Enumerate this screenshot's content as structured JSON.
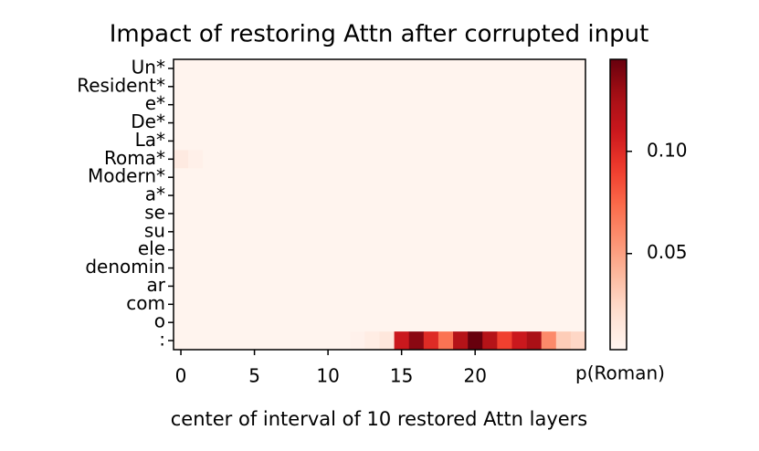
{
  "chart_data": {
    "type": "heatmap",
    "title": "Impact of restoring Attn after corrupted input",
    "xlabel": "center of interval of 10 restored Attn layers",
    "colorbar_label": "p(Roman)",
    "colormap": "Reds",
    "categories": [
      "Un*",
      "Resident*",
      "e*",
      "De*",
      "La*",
      "Roma*",
      "Modern*",
      "a*",
      "se",
      "su",
      "ele",
      "denomin",
      "ar",
      "com",
      "o",
      ":"
    ],
    "xlim": [
      -0.5,
      27.5
    ],
    "xticks": [
      0,
      5,
      10,
      15,
      20
    ],
    "zlim": [
      0.003,
      0.145
    ],
    "zticks": [
      0.05,
      {
        "value": 0.1,
        "label": "0.10"
      }
    ],
    "z": [
      [
        0.004,
        0.004,
        0.004,
        0.004,
        0.004,
        0.004,
        0.004,
        0.004,
        0.004,
        0.004,
        0.004,
        0.004,
        0.004,
        0.004,
        0.004,
        0.004,
        0.004,
        0.004,
        0.004,
        0.004,
        0.004,
        0.004,
        0.004,
        0.004,
        0.004,
        0.004,
        0.004,
        0.004
      ],
      [
        0.004,
        0.004,
        0.004,
        0.004,
        0.004,
        0.004,
        0.004,
        0.004,
        0.004,
        0.004,
        0.004,
        0.004,
        0.004,
        0.004,
        0.004,
        0.004,
        0.004,
        0.004,
        0.004,
        0.004,
        0.004,
        0.004,
        0.004,
        0.004,
        0.004,
        0.004,
        0.004,
        0.004
      ],
      [
        0.004,
        0.004,
        0.004,
        0.004,
        0.004,
        0.004,
        0.004,
        0.004,
        0.004,
        0.004,
        0.004,
        0.004,
        0.004,
        0.004,
        0.004,
        0.004,
        0.004,
        0.004,
        0.004,
        0.004,
        0.004,
        0.004,
        0.004,
        0.004,
        0.004,
        0.004,
        0.004,
        0.004
      ],
      [
        0.004,
        0.004,
        0.004,
        0.004,
        0.004,
        0.004,
        0.004,
        0.004,
        0.004,
        0.004,
        0.004,
        0.004,
        0.004,
        0.004,
        0.004,
        0.004,
        0.004,
        0.004,
        0.004,
        0.004,
        0.004,
        0.004,
        0.004,
        0.004,
        0.004,
        0.004,
        0.004,
        0.004
      ],
      [
        0.004,
        0.004,
        0.004,
        0.004,
        0.004,
        0.004,
        0.004,
        0.004,
        0.004,
        0.004,
        0.004,
        0.004,
        0.004,
        0.004,
        0.004,
        0.004,
        0.004,
        0.004,
        0.004,
        0.004,
        0.004,
        0.004,
        0.004,
        0.004,
        0.004,
        0.004,
        0.004,
        0.004
      ],
      [
        0.012,
        0.007,
        0.004,
        0.004,
        0.004,
        0.004,
        0.004,
        0.004,
        0.004,
        0.004,
        0.004,
        0.004,
        0.004,
        0.004,
        0.004,
        0.004,
        0.004,
        0.004,
        0.004,
        0.004,
        0.004,
        0.004,
        0.004,
        0.004,
        0.004,
        0.004,
        0.004,
        0.004
      ],
      [
        0.004,
        0.004,
        0.004,
        0.004,
        0.004,
        0.004,
        0.004,
        0.004,
        0.004,
        0.004,
        0.004,
        0.004,
        0.004,
        0.004,
        0.004,
        0.004,
        0.004,
        0.004,
        0.004,
        0.004,
        0.004,
        0.004,
        0.004,
        0.004,
        0.004,
        0.004,
        0.004,
        0.004
      ],
      [
        0.004,
        0.004,
        0.004,
        0.004,
        0.004,
        0.004,
        0.004,
        0.004,
        0.004,
        0.004,
        0.004,
        0.004,
        0.004,
        0.004,
        0.004,
        0.004,
        0.004,
        0.004,
        0.004,
        0.004,
        0.004,
        0.004,
        0.004,
        0.004,
        0.004,
        0.004,
        0.004,
        0.004
      ],
      [
        0.004,
        0.004,
        0.004,
        0.004,
        0.004,
        0.004,
        0.004,
        0.004,
        0.004,
        0.004,
        0.004,
        0.004,
        0.004,
        0.004,
        0.004,
        0.004,
        0.004,
        0.004,
        0.004,
        0.004,
        0.004,
        0.004,
        0.004,
        0.004,
        0.004,
        0.004,
        0.004,
        0.004
      ],
      [
        0.004,
        0.004,
        0.004,
        0.004,
        0.004,
        0.004,
        0.004,
        0.004,
        0.004,
        0.004,
        0.004,
        0.004,
        0.004,
        0.004,
        0.004,
        0.004,
        0.004,
        0.004,
        0.004,
        0.004,
        0.004,
        0.004,
        0.004,
        0.004,
        0.004,
        0.004,
        0.004,
        0.004
      ],
      [
        0.004,
        0.004,
        0.004,
        0.004,
        0.004,
        0.004,
        0.004,
        0.004,
        0.004,
        0.004,
        0.004,
        0.004,
        0.004,
        0.004,
        0.004,
        0.004,
        0.004,
        0.004,
        0.004,
        0.004,
        0.004,
        0.004,
        0.004,
        0.004,
        0.004,
        0.004,
        0.004,
        0.004
      ],
      [
        0.004,
        0.004,
        0.004,
        0.004,
        0.004,
        0.004,
        0.004,
        0.004,
        0.004,
        0.004,
        0.004,
        0.004,
        0.004,
        0.004,
        0.004,
        0.004,
        0.004,
        0.004,
        0.004,
        0.004,
        0.004,
        0.004,
        0.004,
        0.004,
        0.004,
        0.004,
        0.004,
        0.004
      ],
      [
        0.004,
        0.004,
        0.004,
        0.004,
        0.004,
        0.004,
        0.004,
        0.004,
        0.004,
        0.004,
        0.004,
        0.004,
        0.004,
        0.004,
        0.004,
        0.004,
        0.004,
        0.004,
        0.004,
        0.004,
        0.004,
        0.004,
        0.004,
        0.004,
        0.004,
        0.004,
        0.004,
        0.004
      ],
      [
        0.004,
        0.004,
        0.004,
        0.004,
        0.004,
        0.004,
        0.004,
        0.004,
        0.004,
        0.004,
        0.004,
        0.004,
        0.004,
        0.004,
        0.004,
        0.004,
        0.004,
        0.004,
        0.004,
        0.004,
        0.004,
        0.004,
        0.004,
        0.004,
        0.004,
        0.004,
        0.004,
        0.004
      ],
      [
        0.004,
        0.004,
        0.004,
        0.004,
        0.004,
        0.004,
        0.004,
        0.004,
        0.004,
        0.004,
        0.004,
        0.004,
        0.004,
        0.004,
        0.004,
        0.004,
        0.004,
        0.004,
        0.004,
        0.004,
        0.004,
        0.004,
        0.004,
        0.004,
        0.004,
        0.004,
        0.004,
        0.004
      ],
      [
        0.004,
        0.004,
        0.004,
        0.004,
        0.004,
        0.004,
        0.004,
        0.004,
        0.004,
        0.004,
        0.004,
        0.004,
        0.006,
        0.01,
        0.015,
        0.11,
        0.135,
        0.1,
        0.07,
        0.12,
        0.145,
        0.12,
        0.09,
        0.11,
        0.125,
        0.06,
        0.03,
        0.025
      ]
    ]
  }
}
